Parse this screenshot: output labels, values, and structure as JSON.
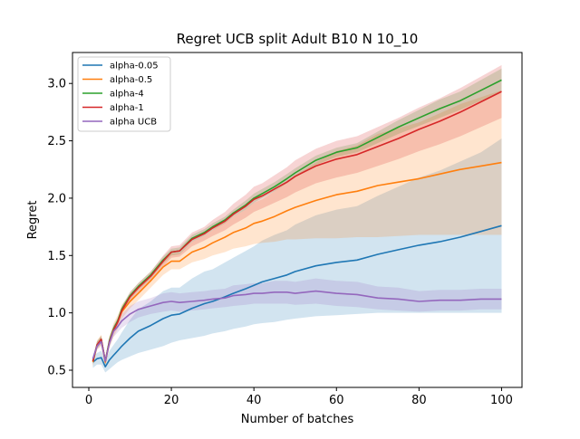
{
  "chart_data": {
    "type": "line",
    "title": "Regret UCB split Adult B10 N 10_10",
    "xlabel": "Number of batches",
    "ylabel": "Regret",
    "xlim": [
      -3.95,
      104.95
    ],
    "ylim": [
      0.35,
      3.27
    ],
    "xticks": [
      0,
      20,
      40,
      60,
      80,
      100
    ],
    "xtick_labels": [
      "0",
      "20",
      "40",
      "60",
      "80",
      "100"
    ],
    "yticks": [
      0.5,
      1.0,
      1.5,
      2.0,
      2.5,
      3.0
    ],
    "ytick_labels": [
      "0.5",
      "1.0",
      "1.5",
      "2.0",
      "2.5",
      "3.0"
    ],
    "grid": false,
    "legend": "top-left",
    "band_opacity": 0.2,
    "series": [
      {
        "name": "alpha-0.05",
        "color": "#1f77b4",
        "x": [
          1,
          2,
          3,
          4,
          5,
          6,
          7,
          8,
          10,
          12,
          15,
          18,
          20,
          22,
          25,
          28,
          30,
          33,
          35,
          38,
          40,
          42,
          45,
          48,
          50,
          55,
          60,
          65,
          70,
          75,
          80,
          85,
          90,
          95,
          100
        ],
        "mean": [
          0.57,
          0.6,
          0.61,
          0.53,
          0.59,
          0.63,
          0.67,
          0.71,
          0.78,
          0.84,
          0.89,
          0.95,
          0.98,
          0.99,
          1.04,
          1.08,
          1.1,
          1.14,
          1.17,
          1.21,
          1.24,
          1.27,
          1.3,
          1.33,
          1.36,
          1.41,
          1.44,
          1.46,
          1.51,
          1.55,
          1.59,
          1.62,
          1.66,
          1.71,
          1.76
        ],
        "lower": [
          0.52,
          0.55,
          0.55,
          0.48,
          0.51,
          0.54,
          0.57,
          0.59,
          0.62,
          0.65,
          0.68,
          0.71,
          0.74,
          0.76,
          0.78,
          0.8,
          0.82,
          0.84,
          0.86,
          0.88,
          0.9,
          0.91,
          0.92,
          0.94,
          0.95,
          0.97,
          0.98,
          0.99,
          1.0,
          1.0,
          1.0,
          1.0,
          1.0,
          1.0,
          1.0
        ],
        "upper": [
          0.62,
          0.65,
          0.67,
          0.58,
          0.67,
          0.72,
          0.77,
          0.83,
          0.94,
          1.03,
          1.1,
          1.19,
          1.22,
          1.22,
          1.3,
          1.36,
          1.38,
          1.44,
          1.48,
          1.54,
          1.58,
          1.63,
          1.68,
          1.72,
          1.77,
          1.85,
          1.9,
          1.93,
          2.02,
          2.1,
          2.18,
          2.24,
          2.32,
          2.4,
          2.52
        ]
      },
      {
        "name": "alpha-0.5",
        "color": "#ff7f0e",
        "x": [
          1,
          2,
          3,
          4,
          5,
          6,
          7,
          8,
          10,
          12,
          15,
          18,
          20,
          22,
          25,
          28,
          30,
          33,
          35,
          38,
          40,
          42,
          45,
          48,
          50,
          55,
          60,
          65,
          70,
          75,
          80,
          85,
          90,
          95,
          100
        ],
        "mean": [
          0.57,
          0.72,
          0.76,
          0.57,
          0.75,
          0.85,
          0.92,
          1.01,
          1.1,
          1.17,
          1.28,
          1.4,
          1.45,
          1.45,
          1.53,
          1.57,
          1.61,
          1.66,
          1.7,
          1.74,
          1.78,
          1.8,
          1.84,
          1.89,
          1.92,
          1.98,
          2.03,
          2.06,
          2.11,
          2.14,
          2.17,
          2.21,
          2.25,
          2.28,
          2.31
        ],
        "lower": [
          0.53,
          0.68,
          0.71,
          0.53,
          0.7,
          0.79,
          0.86,
          0.95,
          1.04,
          1.11,
          1.22,
          1.33,
          1.38,
          1.38,
          1.44,
          1.47,
          1.5,
          1.53,
          1.56,
          1.58,
          1.6,
          1.61,
          1.62,
          1.64,
          1.64,
          1.65,
          1.65,
          1.66,
          1.66,
          1.67,
          1.68,
          1.68,
          1.68,
          1.68,
          1.68
        ],
        "upper": [
          0.61,
          0.76,
          0.81,
          0.61,
          0.8,
          0.91,
          0.98,
          1.07,
          1.16,
          1.23,
          1.34,
          1.47,
          1.52,
          1.52,
          1.62,
          1.67,
          1.72,
          1.79,
          1.84,
          1.9,
          1.96,
          1.99,
          2.06,
          2.14,
          2.2,
          2.31,
          2.41,
          2.46,
          2.56,
          2.61,
          2.66,
          2.74,
          2.82,
          2.88,
          2.94
        ]
      },
      {
        "name": "alpha-4",
        "color": "#2ca02c",
        "x": [
          1,
          2,
          3,
          4,
          5,
          6,
          7,
          8,
          10,
          12,
          15,
          18,
          20,
          22,
          25,
          28,
          30,
          33,
          35,
          38,
          40,
          42,
          45,
          48,
          50,
          55,
          60,
          65,
          70,
          75,
          80,
          85,
          90,
          95,
          100
        ],
        "mean": [
          0.58,
          0.72,
          0.77,
          0.58,
          0.76,
          0.86,
          0.93,
          1.03,
          1.15,
          1.23,
          1.33,
          1.46,
          1.53,
          1.54,
          1.65,
          1.7,
          1.75,
          1.81,
          1.87,
          1.94,
          2.0,
          2.04,
          2.1,
          2.17,
          2.22,
          2.33,
          2.4,
          2.44,
          2.53,
          2.62,
          2.7,
          2.78,
          2.85,
          2.94,
          3.03
        ],
        "lower": [
          0.55,
          0.69,
          0.74,
          0.55,
          0.73,
          0.83,
          0.9,
          1.0,
          1.12,
          1.2,
          1.3,
          1.43,
          1.5,
          1.51,
          1.62,
          1.67,
          1.72,
          1.78,
          1.84,
          1.9,
          1.96,
          2.0,
          2.06,
          2.13,
          2.18,
          2.29,
          2.36,
          2.4,
          2.48,
          2.56,
          2.63,
          2.7,
          2.77,
          2.85,
          2.93
        ],
        "upper": [
          0.61,
          0.75,
          0.8,
          0.61,
          0.79,
          0.89,
          0.96,
          1.06,
          1.18,
          1.26,
          1.36,
          1.49,
          1.56,
          1.57,
          1.68,
          1.73,
          1.78,
          1.84,
          1.9,
          1.98,
          2.04,
          2.08,
          2.14,
          2.21,
          2.26,
          2.37,
          2.44,
          2.48,
          2.58,
          2.68,
          2.77,
          2.86,
          2.93,
          3.03,
          3.13
        ]
      },
      {
        "name": "alpha-1",
        "color": "#d62728",
        "x": [
          1,
          2,
          3,
          4,
          5,
          6,
          7,
          8,
          10,
          12,
          15,
          18,
          20,
          22,
          25,
          28,
          30,
          33,
          35,
          38,
          40,
          42,
          45,
          48,
          50,
          55,
          60,
          65,
          70,
          75,
          80,
          85,
          90,
          95,
          100
        ],
        "mean": [
          0.58,
          0.72,
          0.77,
          0.58,
          0.75,
          0.85,
          0.92,
          1.02,
          1.14,
          1.22,
          1.32,
          1.45,
          1.53,
          1.54,
          1.64,
          1.69,
          1.74,
          1.8,
          1.86,
          1.93,
          1.99,
          2.02,
          2.08,
          2.14,
          2.19,
          2.28,
          2.34,
          2.38,
          2.45,
          2.52,
          2.6,
          2.67,
          2.75,
          2.84,
          2.93
        ],
        "lower": [
          0.55,
          0.69,
          0.74,
          0.55,
          0.72,
          0.82,
          0.89,
          0.99,
          1.1,
          1.18,
          1.28,
          1.4,
          1.48,
          1.49,
          1.58,
          1.63,
          1.67,
          1.72,
          1.77,
          1.83,
          1.88,
          1.91,
          1.96,
          2.01,
          2.05,
          2.13,
          2.18,
          2.22,
          2.28,
          2.34,
          2.41,
          2.47,
          2.54,
          2.62,
          2.7
        ],
        "upper": [
          0.61,
          0.75,
          0.8,
          0.61,
          0.78,
          0.88,
          0.95,
          1.05,
          1.18,
          1.26,
          1.36,
          1.5,
          1.58,
          1.59,
          1.7,
          1.75,
          1.81,
          1.88,
          1.95,
          2.03,
          2.1,
          2.13,
          2.2,
          2.27,
          2.33,
          2.43,
          2.5,
          2.54,
          2.62,
          2.7,
          2.79,
          2.87,
          2.96,
          3.06,
          3.16
        ]
      },
      {
        "name": "alpha UCB",
        "color": "#9467bd",
        "x": [
          1,
          2,
          3,
          4,
          5,
          6,
          7,
          8,
          10,
          12,
          15,
          18,
          20,
          22,
          25,
          28,
          30,
          33,
          35,
          38,
          40,
          42,
          45,
          48,
          50,
          55,
          60,
          65,
          70,
          75,
          80,
          85,
          90,
          95,
          100
        ],
        "mean": [
          0.6,
          0.71,
          0.75,
          0.58,
          0.74,
          0.84,
          0.88,
          0.93,
          0.99,
          1.03,
          1.06,
          1.09,
          1.1,
          1.09,
          1.1,
          1.11,
          1.12,
          1.13,
          1.15,
          1.16,
          1.17,
          1.17,
          1.18,
          1.18,
          1.17,
          1.19,
          1.17,
          1.16,
          1.13,
          1.12,
          1.1,
          1.11,
          1.11,
          1.12,
          1.12
        ],
        "lower": [
          0.57,
          0.68,
          0.72,
          0.55,
          0.7,
          0.79,
          0.83,
          0.87,
          0.92,
          0.96,
          0.99,
          1.01,
          1.02,
          1.01,
          1.02,
          1.03,
          1.04,
          1.05,
          1.06,
          1.07,
          1.08,
          1.08,
          1.08,
          1.08,
          1.07,
          1.08,
          1.06,
          1.05,
          1.03,
          1.02,
          1.01,
          1.02,
          1.02,
          1.03,
          1.03
        ],
        "upper": [
          0.63,
          0.74,
          0.78,
          0.61,
          0.78,
          0.89,
          0.93,
          0.99,
          1.06,
          1.1,
          1.13,
          1.17,
          1.18,
          1.17,
          1.18,
          1.19,
          1.2,
          1.21,
          1.24,
          1.25,
          1.26,
          1.26,
          1.28,
          1.28,
          1.27,
          1.3,
          1.28,
          1.27,
          1.23,
          1.22,
          1.19,
          1.2,
          1.2,
          1.21,
          1.21
        ]
      }
    ]
  }
}
